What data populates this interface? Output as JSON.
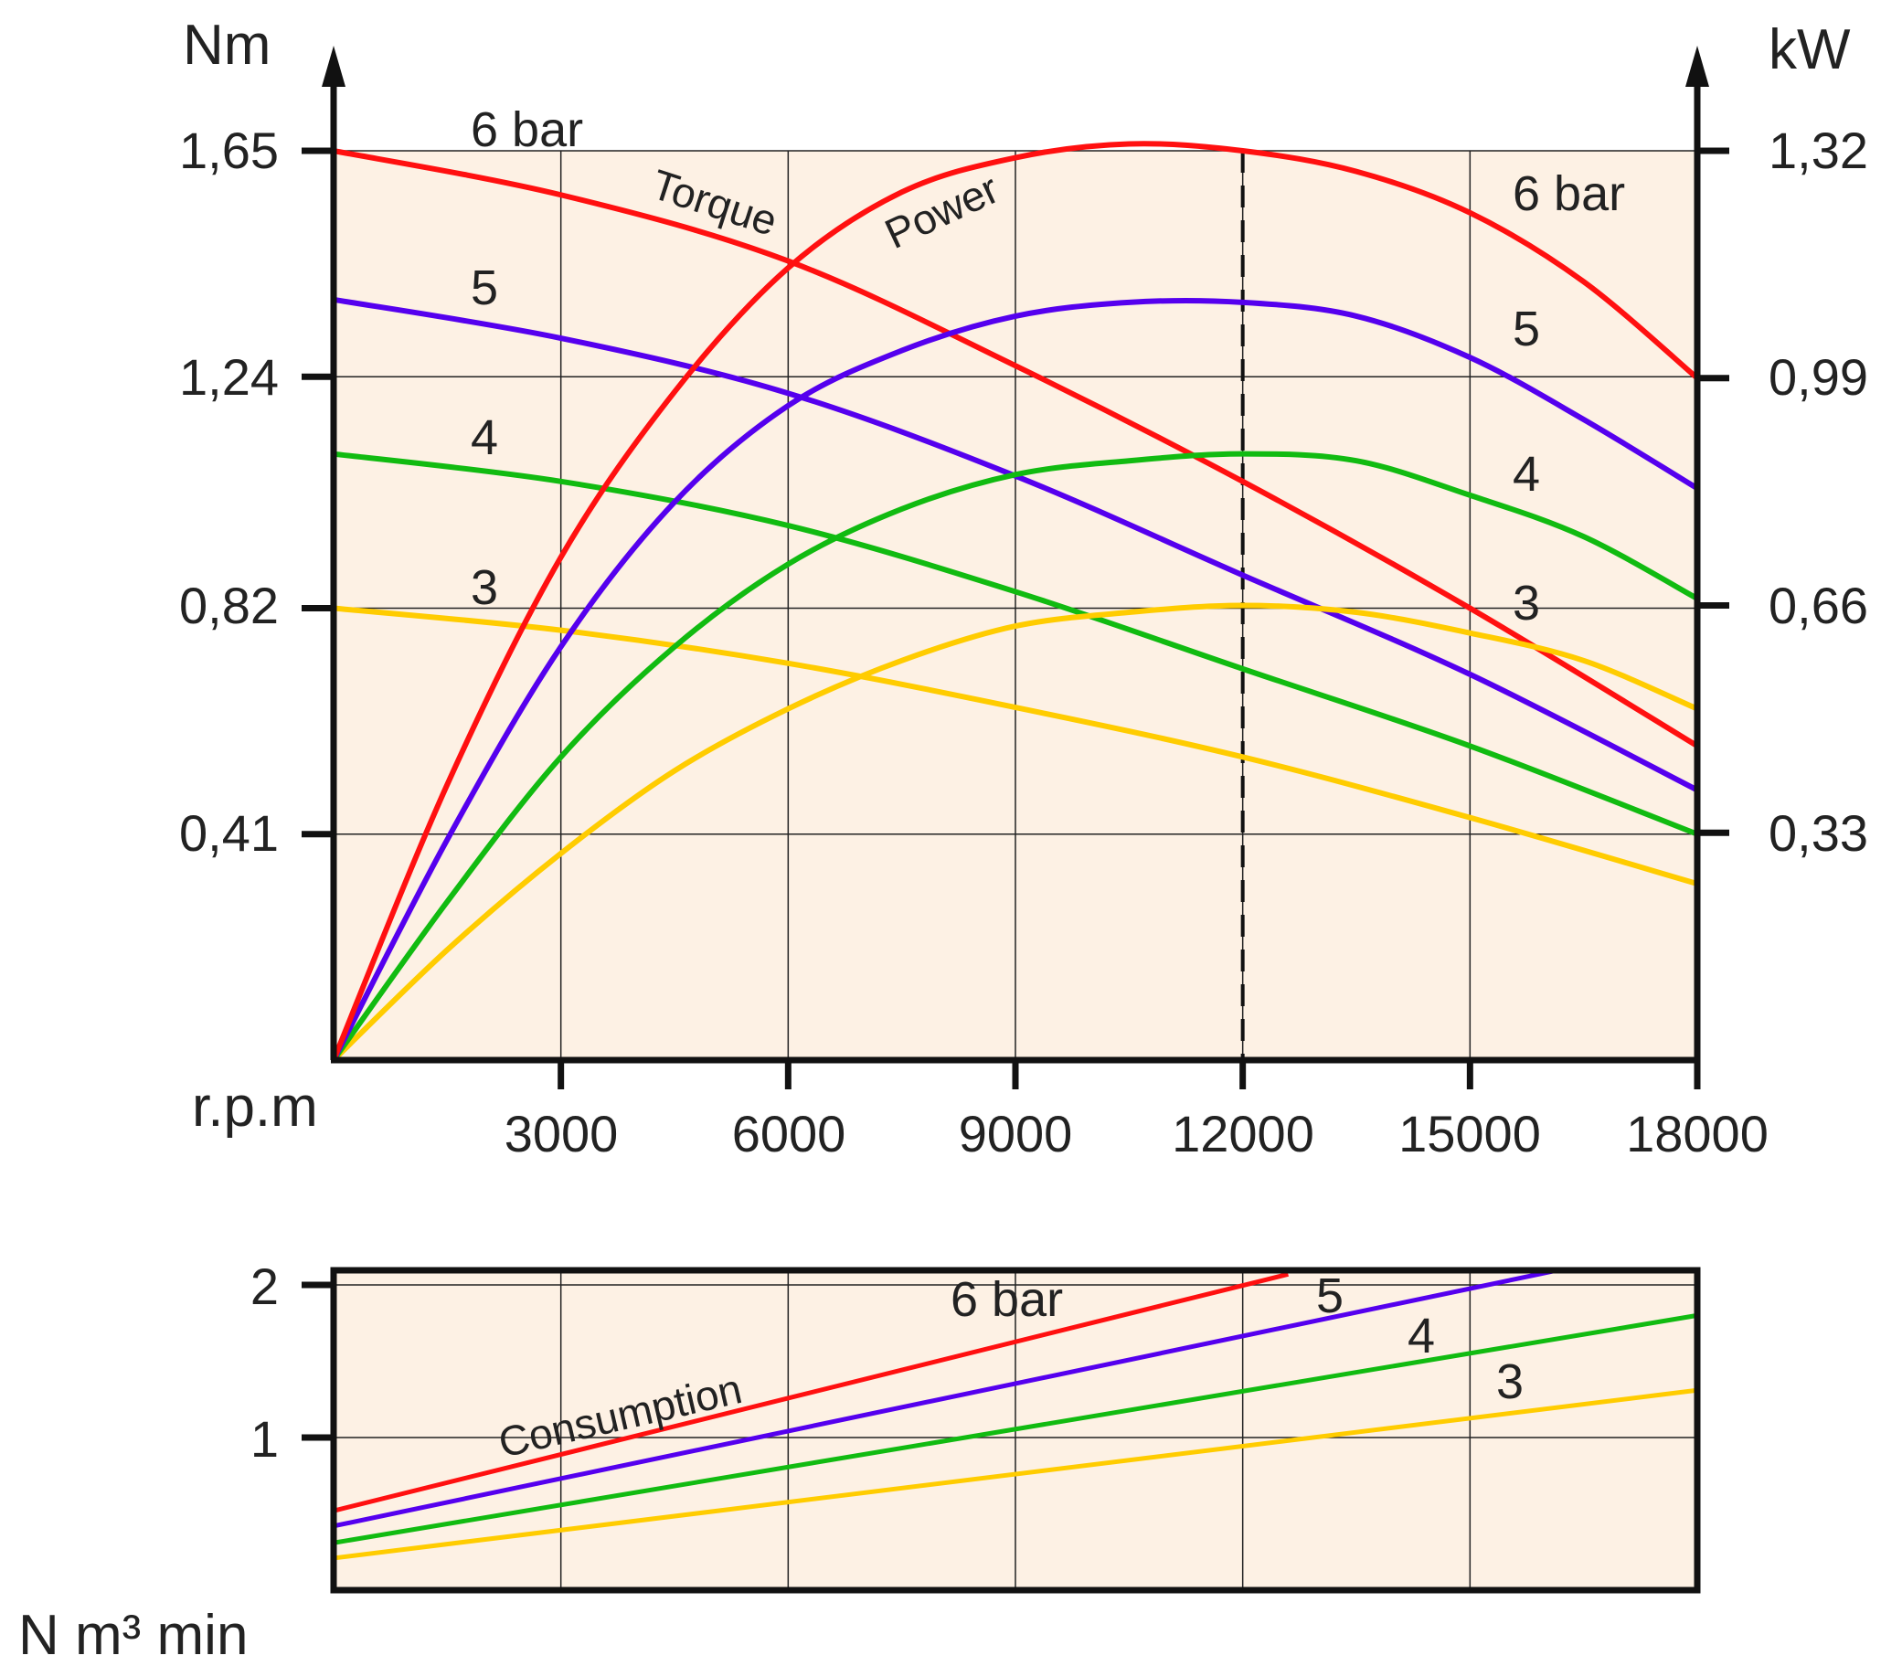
{
  "colors": {
    "background": "#fdf1e4",
    "grid": "#222222",
    "axis": "#111111",
    "pressures": {
      "6": "#ff1010",
      "5": "#5500ee",
      "4": "#11bb11",
      "3": "#ffcc00"
    }
  },
  "chart_data": [
    {
      "type": "line",
      "title": "",
      "left_unit": "Nm",
      "right_unit": "kW",
      "x_unit": "r.p.m",
      "xlim": [
        0,
        18000
      ],
      "x_ticks": [
        "3000",
        "6000",
        "9000",
        "12000",
        "15000",
        "18000"
      ],
      "left_ylim": [
        0,
        1.65
      ],
      "left_ticks": [
        "0,41",
        "0,82",
        "1,24",
        "1,65"
      ],
      "right_ylim": [
        0,
        1.32
      ],
      "right_ticks": [
        "0,33",
        "0,66",
        "0,99",
        "1,32"
      ],
      "grid": true,
      "marker_line_x": 12000,
      "torque_label": "Torque",
      "power_label": "Power",
      "curve_labels_left": [
        "6 bar",
        "5",
        "4",
        "3"
      ],
      "curve_labels_right": [
        "6 bar",
        "5",
        "4",
        "3"
      ],
      "series": [
        {
          "name": "Torque",
          "pressure": "6",
          "axis": "left",
          "x": [
            0,
            3000,
            6000,
            9000,
            12000,
            15000,
            18000
          ],
          "y": [
            1.65,
            1.57,
            1.45,
            1.26,
            1.05,
            0.82,
            0.57
          ]
        },
        {
          "name": "Torque",
          "pressure": "5",
          "axis": "left",
          "x": [
            0,
            3000,
            6000,
            9000,
            12000,
            15000,
            18000
          ],
          "y": [
            1.38,
            1.31,
            1.21,
            1.06,
            0.88,
            0.7,
            0.49
          ]
        },
        {
          "name": "Torque",
          "pressure": "4",
          "axis": "left",
          "x": [
            0,
            3000,
            6000,
            9000,
            12000,
            15000,
            18000
          ],
          "y": [
            1.1,
            1.05,
            0.97,
            0.85,
            0.71,
            0.57,
            0.41
          ]
        },
        {
          "name": "Torque",
          "pressure": "3",
          "axis": "left",
          "x": [
            0,
            3000,
            6000,
            9000,
            12000,
            15000,
            18000
          ],
          "y": [
            0.82,
            0.78,
            0.72,
            0.64,
            0.55,
            0.44,
            0.32
          ]
        },
        {
          "name": "Power",
          "pressure": "6",
          "axis": "right",
          "x": [
            0,
            1500,
            3000,
            4500,
            6000,
            7500,
            9000,
            10500,
            12000,
            13500,
            15000,
            16500,
            18000
          ],
          "y": [
            0.0,
            0.4,
            0.73,
            0.97,
            1.15,
            1.26,
            1.31,
            1.33,
            1.32,
            1.29,
            1.23,
            1.13,
            0.99
          ]
        },
        {
          "name": "Power",
          "pressure": "5",
          "axis": "right",
          "x": [
            0,
            1500,
            3000,
            4500,
            6000,
            7500,
            9000,
            10500,
            12000,
            13500,
            15000,
            16500,
            18000
          ],
          "y": [
            0.0,
            0.32,
            0.6,
            0.81,
            0.95,
            1.03,
            1.08,
            1.1,
            1.1,
            1.08,
            1.02,
            0.93,
            0.83
          ]
        },
        {
          "name": "Power",
          "pressure": "4",
          "axis": "right",
          "x": [
            0,
            1500,
            3000,
            4500,
            6000,
            7500,
            9000,
            10500,
            12000,
            13500,
            15000,
            16500,
            18000
          ],
          "y": [
            0.0,
            0.23,
            0.44,
            0.6,
            0.72,
            0.8,
            0.85,
            0.87,
            0.88,
            0.87,
            0.82,
            0.76,
            0.67
          ]
        },
        {
          "name": "Power",
          "pressure": "3",
          "axis": "right",
          "x": [
            0,
            1500,
            3000,
            4500,
            6000,
            7500,
            9000,
            10500,
            12000,
            13500,
            15000,
            16500,
            18000
          ],
          "y": [
            0.0,
            0.16,
            0.3,
            0.42,
            0.51,
            0.58,
            0.63,
            0.65,
            0.66,
            0.65,
            0.62,
            0.58,
            0.51
          ]
        }
      ]
    },
    {
      "type": "line",
      "title": "",
      "y_unit": "N m³ min",
      "xlim": [
        0,
        18000
      ],
      "ylim": [
        0,
        2
      ],
      "y_ticks": [
        "1",
        "2"
      ],
      "grid": true,
      "consumption_label": "Consumption",
      "curve_labels": [
        "6 bar",
        "5",
        "4",
        "3"
      ],
      "series": [
        {
          "name": "Consumption",
          "pressure": "6",
          "x": [
            0,
            12600
          ],
          "y": [
            0.52,
            2.07
          ]
        },
        {
          "name": "Consumption",
          "pressure": "5",
          "x": [
            0,
            16100
          ],
          "y": [
            0.42,
            2.09
          ]
        },
        {
          "name": "Consumption",
          "pressure": "4",
          "x": [
            0,
            18000
          ],
          "y": [
            0.31,
            1.8
          ]
        },
        {
          "name": "Consumption",
          "pressure": "3",
          "x": [
            0,
            18000
          ],
          "y": [
            0.21,
            1.31
          ]
        }
      ]
    }
  ]
}
